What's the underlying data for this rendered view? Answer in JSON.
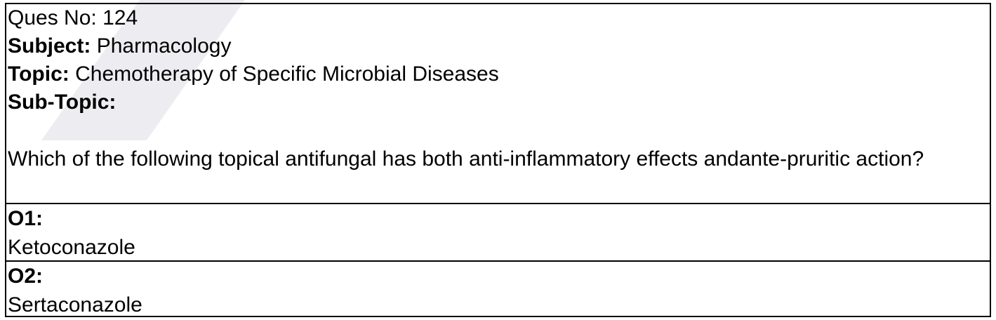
{
  "header": {
    "ques_no_label": "Ques No:",
    "ques_no_value": "124",
    "subject_label": "Subject:",
    "subject_value": "Pharmacology",
    "topic_label": "Topic:",
    "topic_value": "Chemotherapy of Specific Microbial Diseases",
    "subtopic_label": "Sub-Topic:",
    "subtopic_value": ""
  },
  "question": {
    "text": "Which of the following topical antifungal has both anti-inflammatory effects andante-pruritic action?"
  },
  "options": [
    {
      "label": "O1:",
      "value": "Ketoconazole"
    },
    {
      "label": "O2:",
      "value": "Sertaconazole"
    }
  ]
}
